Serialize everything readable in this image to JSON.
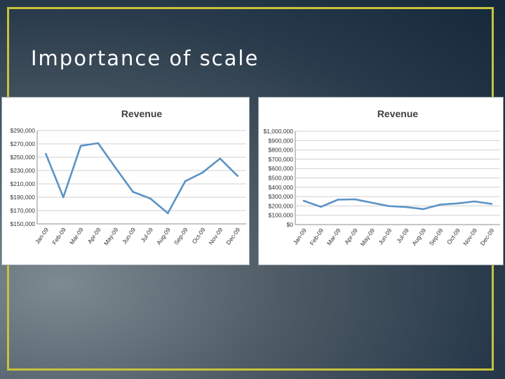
{
  "slide": {
    "title": "Importance of scale",
    "frame_color": "#c9c23a"
  },
  "chart_data": [
    {
      "type": "line",
      "title": "Revenue",
      "xlabel": "",
      "ylabel": "",
      "categories": [
        "Jan-09",
        "Feb-09",
        "Mar-09",
        "Apr-09",
        "May-09",
        "Jun-09",
        "Jul-09",
        "Aug-09",
        "Sep-09",
        "Oct-09",
        "Nov-09",
        "Dec-09"
      ],
      "series": [
        {
          "values": [
            255000,
            190000,
            267000,
            271000,
            234000,
            198000,
            188000,
            166000,
            214000,
            227000,
            248000,
            222000
          ],
          "color": "#5b93c6"
        }
      ],
      "ylim": [
        150000,
        290000
      ],
      "yticks": [
        150000,
        170000,
        190000,
        210000,
        230000,
        250000,
        270000,
        290000
      ],
      "ytick_labels": [
        "$150,000",
        "$170,000",
        "$190,000",
        "$210,000",
        "$230,000",
        "$250,000",
        "$270,000",
        "$290,000"
      ],
      "grid": true,
      "legend": "none"
    },
    {
      "type": "line",
      "title": "Revenue",
      "xlabel": "",
      "ylabel": "",
      "categories": [
        "Jan-09",
        "Feb-09",
        "Mar-09",
        "Apr-09",
        "May-09",
        "Jun-09",
        "Jul-09",
        "Aug-09",
        "Sep-09",
        "Oct-09",
        "Nov-09",
        "Dec-09"
      ],
      "series": [
        {
          "values": [
            255000,
            190000,
            267000,
            271000,
            234000,
            198000,
            188000,
            166000,
            214000,
            227000,
            248000,
            222000
          ],
          "color": "#5b93c6"
        }
      ],
      "ylim": [
        0,
        1000000
      ],
      "yticks": [
        0,
        100000,
        200000,
        300000,
        400000,
        500000,
        600000,
        700000,
        800000,
        900000,
        1000000
      ],
      "ytick_labels": [
        "$0",
        "$100,000",
        "$200,000",
        "$300,000",
        "$400,000",
        "$500,000",
        "$600,000",
        "$700,000",
        "$800,000",
        "$900,000",
        "$1,000,000"
      ],
      "grid": true,
      "legend": "none"
    }
  ]
}
